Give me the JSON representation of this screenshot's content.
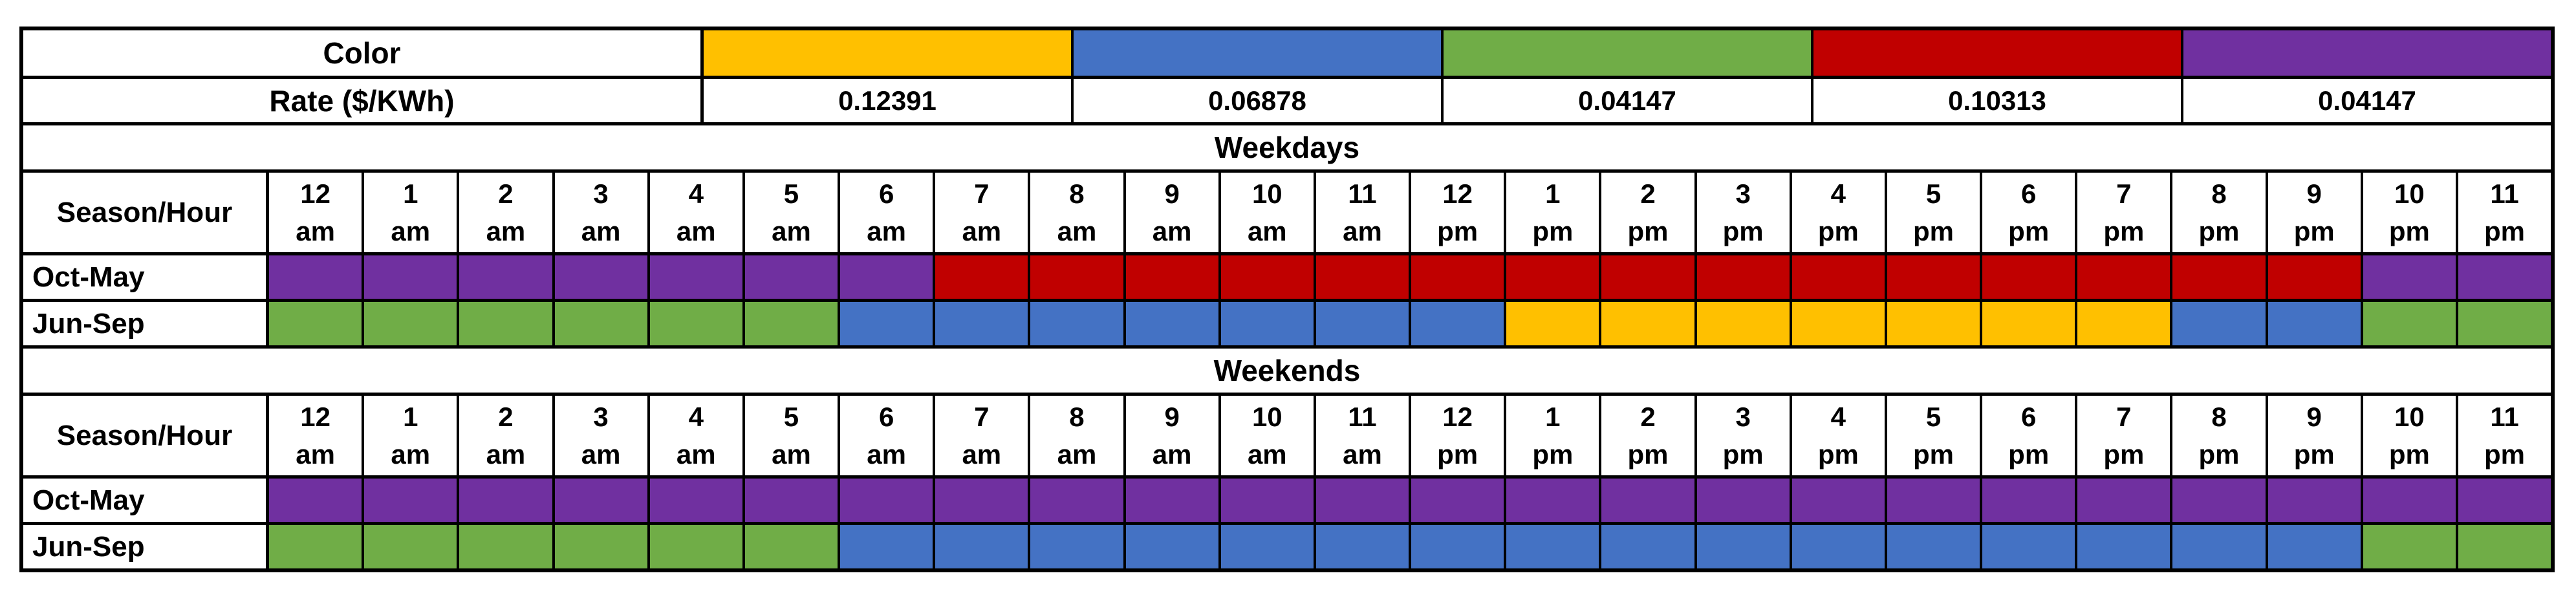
{
  "ui": {
    "color_row_label": "Color",
    "rate_row_label": "Rate ($/KWh)",
    "weekdays_corner_label": "Season/Hour",
    "weekends_corner_label": "Season/Hour"
  },
  "palette": {
    "yellow": "#FFC000",
    "blue": "#4472C4",
    "green": "#70AD47",
    "red": "#C00000",
    "purple": "#7030A0"
  },
  "chart_data": {
    "type": "heatmap",
    "description": "Time-of-use electricity rate schedule; cell color encodes the rate in $/KWh for each hour, season, and day type",
    "legend_entries": [
      {
        "color": "yellow",
        "hex": "#FFC000",
        "rate": "0.12391",
        "rate_value": 0.12391
      },
      {
        "color": "blue",
        "hex": "#4472C4",
        "rate": "0.06878",
        "rate_value": 0.06878
      },
      {
        "color": "green",
        "hex": "#70AD47",
        "rate": "0.04147",
        "rate_value": 0.04147
      },
      {
        "color": "red",
        "hex": "#C00000",
        "rate": "0.10313",
        "rate_value": 0.10313
      },
      {
        "color": "purple",
        "hex": "#7030A0",
        "rate": "0.04147",
        "rate_value": 0.04147
      }
    ],
    "hours": [
      {
        "num": "12",
        "mer": "am"
      },
      {
        "num": "1",
        "mer": "am"
      },
      {
        "num": "2",
        "mer": "am"
      },
      {
        "num": "3",
        "mer": "am"
      },
      {
        "num": "4",
        "mer": "am"
      },
      {
        "num": "5",
        "mer": "am"
      },
      {
        "num": "6",
        "mer": "am"
      },
      {
        "num": "7",
        "mer": "am"
      },
      {
        "num": "8",
        "mer": "am"
      },
      {
        "num": "9",
        "mer": "am"
      },
      {
        "num": "10",
        "mer": "am"
      },
      {
        "num": "11",
        "mer": "am"
      },
      {
        "num": "12",
        "mer": "pm"
      },
      {
        "num": "1",
        "mer": "pm"
      },
      {
        "num": "2",
        "mer": "pm"
      },
      {
        "num": "3",
        "mer": "pm"
      },
      {
        "num": "4",
        "mer": "pm"
      },
      {
        "num": "5",
        "mer": "pm"
      },
      {
        "num": "6",
        "mer": "pm"
      },
      {
        "num": "7",
        "mer": "pm"
      },
      {
        "num": "8",
        "mer": "pm"
      },
      {
        "num": "9",
        "mer": "pm"
      },
      {
        "num": "10",
        "mer": "pm"
      },
      {
        "num": "11",
        "mer": "pm"
      }
    ],
    "sections": [
      {
        "title": "Weekdays",
        "rows": [
          {
            "label": "Oct-May",
            "cells": [
              "purple",
              "purple",
              "purple",
              "purple",
              "purple",
              "purple",
              "purple",
              "red",
              "red",
              "red",
              "red",
              "red",
              "red",
              "red",
              "red",
              "red",
              "red",
              "red",
              "red",
              "red",
              "red",
              "red",
              "purple",
              "purple"
            ]
          },
          {
            "label": "Jun-Sep",
            "cells": [
              "green",
              "green",
              "green",
              "green",
              "green",
              "green",
              "blue",
              "blue",
              "blue",
              "blue",
              "blue",
              "blue",
              "blue",
              "yellow",
              "yellow",
              "yellow",
              "yellow",
              "yellow",
              "yellow",
              "yellow",
              "blue",
              "blue",
              "green",
              "green"
            ]
          }
        ]
      },
      {
        "title": "Weekends",
        "rows": [
          {
            "label": "Oct-May",
            "cells": [
              "purple",
              "purple",
              "purple",
              "purple",
              "purple",
              "purple",
              "purple",
              "purple",
              "purple",
              "purple",
              "purple",
              "purple",
              "purple",
              "purple",
              "purple",
              "purple",
              "purple",
              "purple",
              "purple",
              "purple",
              "purple",
              "purple",
              "purple",
              "purple"
            ]
          },
          {
            "label": "Jun-Sep",
            "cells": [
              "green",
              "green",
              "green",
              "green",
              "green",
              "green",
              "blue",
              "blue",
              "blue",
              "blue",
              "blue",
              "blue",
              "blue",
              "blue",
              "blue",
              "blue",
              "blue",
              "blue",
              "blue",
              "blue",
              "blue",
              "blue",
              "green",
              "green"
            ]
          }
        ]
      }
    ]
  }
}
